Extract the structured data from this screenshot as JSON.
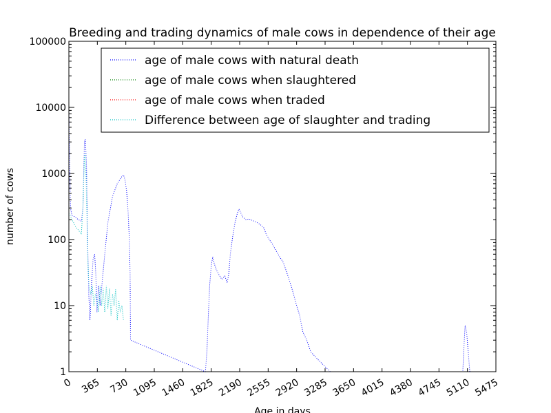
{
  "chart_data": {
    "type": "line",
    "title": "Breeding and trading dynamics of male cows in dependence of their age",
    "xlabel": "Age in days",
    "ylabel": "number of cows",
    "xlim": [
      0,
      5475
    ],
    "ylim": [
      1,
      100000
    ],
    "y_scale": "log",
    "x_ticks": [
      0,
      365,
      730,
      1095,
      1460,
      1825,
      2190,
      2555,
      2920,
      3285,
      3650,
      4015,
      4380,
      4745,
      5110,
      5475
    ],
    "y_ticks": [
      1,
      10,
      100,
      1000,
      10000,
      100000
    ],
    "y_tick_labels": [
      "1",
      "10",
      "100",
      "1000",
      "10000",
      "100000"
    ],
    "grid": false,
    "legend_position": "top",
    "line_style": "dotted",
    "series": [
      {
        "name": "age of male cows with natural death",
        "color": "#0000ff",
        "points": [
          [
            0,
            9000
          ],
          [
            10,
            1500
          ],
          [
            20,
            300
          ],
          [
            40,
            230
          ],
          [
            80,
            220
          ],
          [
            120,
            200
          ],
          [
            160,
            190
          ],
          [
            180,
            300
          ],
          [
            200,
            3000
          ],
          [
            210,
            3300
          ],
          [
            225,
            1500
          ],
          [
            240,
            100
          ],
          [
            255,
            15
          ],
          [
            270,
            6
          ],
          [
            290,
            20
          ],
          [
            310,
            50
          ],
          [
            330,
            60
          ],
          [
            345,
            30
          ],
          [
            360,
            8
          ],
          [
            380,
            20
          ],
          [
            400,
            10
          ],
          [
            430,
            25
          ],
          [
            460,
            60
          ],
          [
            500,
            180
          ],
          [
            560,
            450
          ],
          [
            620,
            700
          ],
          [
            680,
            900
          ],
          [
            700,
            950
          ],
          [
            720,
            800
          ],
          [
            740,
            550
          ],
          [
            760,
            250
          ],
          [
            775,
            100
          ],
          [
            785,
            30
          ],
          [
            790,
            3
          ],
          [
            1750,
            1
          ],
          [
            1770,
            2
          ],
          [
            1790,
            8
          ],
          [
            1805,
            20
          ],
          [
            1825,
            40
          ],
          [
            1845,
            55
          ],
          [
            1860,
            45
          ],
          [
            1890,
            35
          ],
          [
            1920,
            30
          ],
          [
            1960,
            25
          ],
          [
            2000,
            28
          ],
          [
            2030,
            22
          ],
          [
            2050,
            30
          ],
          [
            2070,
            60
          ],
          [
            2100,
            110
          ],
          [
            2130,
            180
          ],
          [
            2160,
            250
          ],
          [
            2180,
            290
          ],
          [
            2200,
            260
          ],
          [
            2230,
            220
          ],
          [
            2270,
            200
          ],
          [
            2310,
            205
          ],
          [
            2350,
            195
          ],
          [
            2400,
            185
          ],
          [
            2450,
            170
          ],
          [
            2500,
            150
          ],
          [
            2530,
            120
          ],
          [
            2570,
            100
          ],
          [
            2610,
            85
          ],
          [
            2650,
            70
          ],
          [
            2700,
            55
          ],
          [
            2750,
            45
          ],
          [
            2800,
            30
          ],
          [
            2850,
            20
          ],
          [
            2880,
            15
          ],
          [
            2920,
            10
          ],
          [
            2960,
            7
          ],
          [
            3000,
            4
          ],
          [
            3050,
            3
          ],
          [
            3100,
            2
          ],
          [
            3200,
            1.5
          ],
          [
            3350,
            1
          ],
          [
            5050,
            1
          ],
          [
            5070,
            3
          ],
          [
            5080,
            5
          ],
          [
            5100,
            4
          ],
          [
            5120,
            2
          ],
          [
            5140,
            1
          ]
        ]
      },
      {
        "name": "age of male cows when slaughtered",
        "color": "#008000",
        "points": []
      },
      {
        "name": "age of male cows when traded",
        "color": "#ff0000",
        "points": []
      },
      {
        "name": "Difference between age of slaughter and trading",
        "color": "#00bfbf",
        "points": [
          [
            0,
            250
          ],
          [
            20,
            230
          ],
          [
            40,
            200
          ],
          [
            60,
            180
          ],
          [
            80,
            160
          ],
          [
            100,
            150
          ],
          [
            120,
            140
          ],
          [
            140,
            130
          ],
          [
            160,
            120
          ],
          [
            180,
            300
          ],
          [
            200,
            1800
          ],
          [
            210,
            2000
          ],
          [
            220,
            900
          ],
          [
            230,
            300
          ],
          [
            240,
            60
          ],
          [
            250,
            30
          ],
          [
            260,
            20
          ],
          [
            280,
            15
          ],
          [
            300,
            20
          ],
          [
            320,
            10
          ],
          [
            340,
            15
          ],
          [
            360,
            12
          ],
          [
            380,
            8
          ],
          [
            400,
            20
          ],
          [
            420,
            10
          ],
          [
            440,
            18
          ],
          [
            460,
            8
          ],
          [
            480,
            20
          ],
          [
            500,
            9
          ],
          [
            520,
            18
          ],
          [
            540,
            7
          ],
          [
            560,
            15
          ],
          [
            580,
            10
          ],
          [
            600,
            18
          ],
          [
            620,
            6
          ],
          [
            640,
            12
          ],
          [
            660,
            8
          ],
          [
            680,
            10
          ],
          [
            700,
            6
          ]
        ]
      }
    ]
  }
}
